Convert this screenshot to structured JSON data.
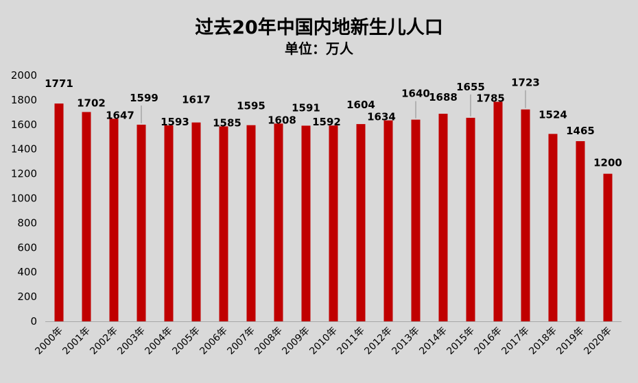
{
  "chart_data": {
    "type": "bar",
    "title": "过去20年中国内地新生儿人口",
    "subtitle": "单位：万人",
    "categories": [
      "2000年",
      "2001年",
      "2002年",
      "2003年",
      "2004年",
      "2005年",
      "2006年",
      "2007年",
      "2008年",
      "2009年",
      "2010年",
      "2011年",
      "2012年",
      "2013年",
      "2014年",
      "2015年",
      "2016年",
      "2017年",
      "2018年",
      "2019年",
      "2020年"
    ],
    "values": [
      1771,
      1702,
      1647,
      1599,
      1593,
      1617,
      1585,
      1595,
      1608,
      1591,
      1592,
      1604,
      1634,
      1640,
      1688,
      1655,
      1785,
      1723,
      1524,
      1465,
      1200
    ],
    "ylim": [
      0,
      2000
    ],
    "yticks": [
      0,
      200,
      400,
      600,
      800,
      1000,
      1200,
      1400,
      1600,
      1800,
      2000
    ],
    "grid": false,
    "bar_color": "#c00000",
    "background": "#d9d9d9"
  }
}
